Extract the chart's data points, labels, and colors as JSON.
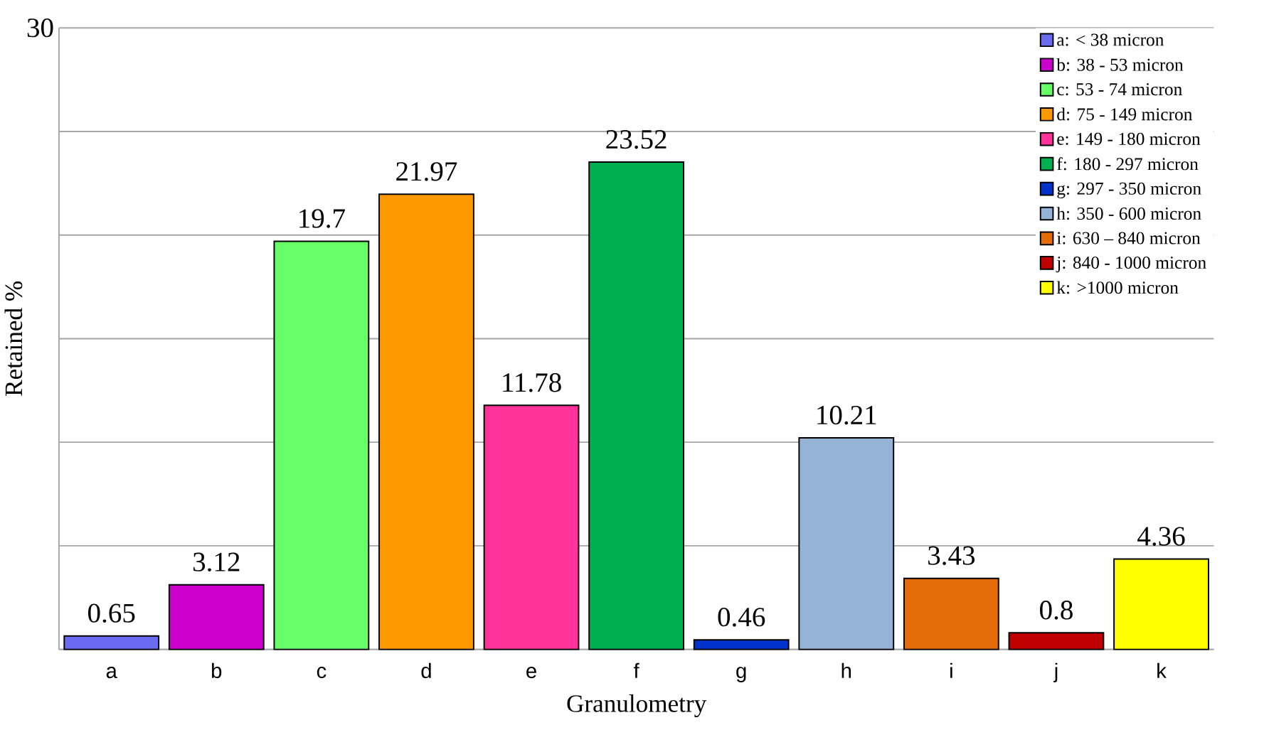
{
  "chart_data": {
    "type": "bar",
    "xlabel": "Granulometry",
    "ylabel": "Retained %",
    "categories": [
      "a",
      "b",
      "c",
      "d",
      "e",
      "f",
      "g",
      "h",
      "i",
      "j",
      "k"
    ],
    "series": [
      {
        "name": "a: < 38 micron",
        "color": "#6b6bf0",
        "values": [
          0.65,
          null,
          null,
          null,
          null,
          null,
          null,
          null,
          null,
          null,
          null
        ]
      },
      {
        "name": "b: 38 - 53 micron",
        "color": "#cc00cc",
        "values": [
          null,
          3.12,
          null,
          null,
          null,
          null,
          null,
          null,
          null,
          null,
          null
        ]
      },
      {
        "name": "c: 53 - 74 micron",
        "color": "#66ff66",
        "values": [
          null,
          null,
          19.7,
          null,
          null,
          null,
          null,
          null,
          null,
          null,
          null
        ]
      },
      {
        "name": "d: 75 - 149 micron",
        "color": "#ff9900",
        "values": [
          null,
          null,
          null,
          21.97,
          null,
          null,
          null,
          null,
          null,
          null,
          null
        ]
      },
      {
        "name": "e: 149 - 180 micron",
        "color": "#ff3399",
        "values": [
          null,
          null,
          null,
          null,
          11.78,
          null,
          null,
          null,
          null,
          null,
          null
        ]
      },
      {
        "name": "f: 180 - 297 micron",
        "color": "#00b050",
        "values": [
          null,
          null,
          null,
          null,
          null,
          23.52,
          null,
          null,
          null,
          null,
          null
        ]
      },
      {
        "name": "g: 297 - 350 micron",
        "color": "#0033cc",
        "values": [
          null,
          null,
          null,
          null,
          null,
          null,
          0.46,
          null,
          null,
          null,
          null
        ]
      },
      {
        "name": "h: 350 - 600 micron",
        "color": "#95b3d7",
        "values": [
          null,
          null,
          null,
          null,
          null,
          null,
          null,
          10.21,
          null,
          null,
          null
        ]
      },
      {
        "name": "i: 630 – 840 micron",
        "color": "#e36c09",
        "values": [
          null,
          null,
          null,
          null,
          null,
          null,
          null,
          null,
          3.43,
          null,
          null
        ]
      },
      {
        "name": "j: 840 - 1000 micron",
        "color": "#c00000",
        "values": [
          null,
          null,
          null,
          null,
          null,
          null,
          null,
          null,
          null,
          0.8,
          null
        ]
      },
      {
        "name": "k: >1000 micron",
        "color": "#ffff00",
        "values": [
          null,
          null,
          null,
          null,
          null,
          null,
          null,
          null,
          null,
          null,
          4.36
        ]
      }
    ],
    "ylim": [
      0,
      30
    ],
    "yticks": [
      {
        "value": 0,
        "label": null
      },
      {
        "value": 5,
        "label": null
      },
      {
        "value": 10,
        "label": null
      },
      {
        "value": 15,
        "label": null
      },
      {
        "value": 20,
        "label": null
      },
      {
        "value": 25,
        "label": null
      },
      30
    ],
    "grid": "y",
    "legend": "top right",
    "data_labels": true,
    "tick_labels": "xy"
  }
}
